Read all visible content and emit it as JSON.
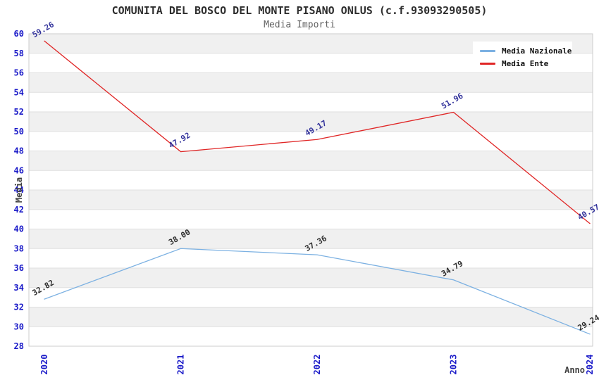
{
  "chart_data": {
    "type": "line",
    "title": "COMUNITA DEL BOSCO DEL MONTE PISANO ONLUS (c.f.93093290505)",
    "subtitle": "Media Importi",
    "xlabel": "Anno",
    "ylabel": "Media",
    "categories": [
      "2020",
      "2021",
      "2022",
      "2023",
      "2024"
    ],
    "series": [
      {
        "name": "Media Nazionale",
        "color": "#7cb1e2",
        "label_color": "#2f2f2f",
        "values": [
          32.82,
          38.0,
          37.36,
          34.79,
          29.24
        ]
      },
      {
        "name": "Media Ente",
        "color": "#e02626",
        "label_color": "#32329b",
        "values": [
          59.26,
          47.92,
          49.17,
          51.96,
          40.57
        ]
      }
    ],
    "ylim": [
      28,
      60
    ],
    "ytick_step": 2,
    "grid": "horizontal-bands",
    "legend_position": "top-right",
    "colors": {
      "tick_label": "#1a1ac8",
      "axis_title": "#404040",
      "band_gray": "#f0f0f0",
      "band_white": "#ffffff",
      "grid_line": "#dfdfdf",
      "frame": "#cccccc",
      "legend_bg": "#ffffff"
    }
  }
}
